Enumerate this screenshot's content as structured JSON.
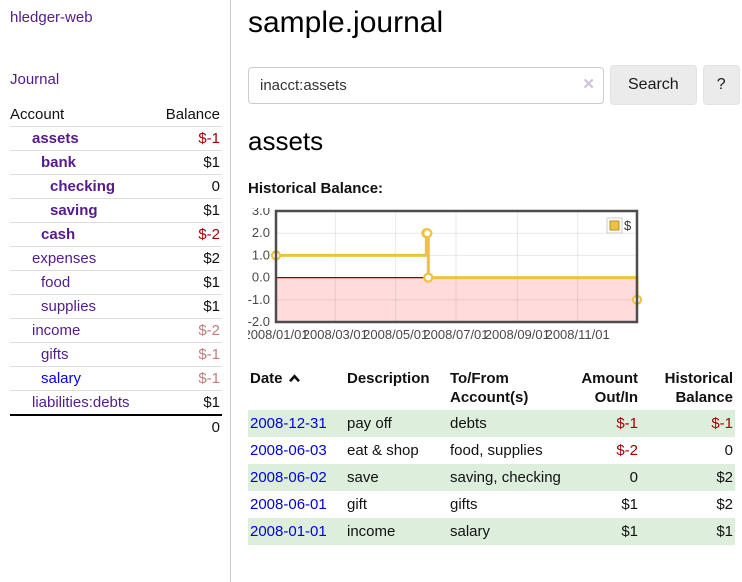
{
  "colors": {
    "link_visited_purple": "#551A8B",
    "link_unvisited_blue": "#0000EE",
    "negative_strong_red": "#a40000",
    "negative_muted_rose": "#c47d7d",
    "row_stripe_green": "#ddeedd",
    "series_gold": "#edc240",
    "negative_region_pink": "#ffdbdb",
    "zero_line_dark_red": "#8b0000",
    "plot_border_gray": "#4d4d4d"
  },
  "icons": {
    "sort_ascending": "chevron-up-icon",
    "clear_search_glyph": "✕",
    "legend_swatch": "gold-square-icon"
  },
  "sidebar": {
    "app_title": "hledger-web",
    "journal_link": "Journal",
    "accounts": {
      "account_header": "Account",
      "balance_header": "Balance",
      "rows": [
        {
          "name": "assets",
          "balance": "$-1",
          "depth": 1,
          "bold": true,
          "link_tone": "visited",
          "balance_tone": "neg-strong"
        },
        {
          "name": "bank",
          "balance": "$1",
          "depth": 2,
          "bold": true,
          "link_tone": "visited",
          "balance_tone": "plain"
        },
        {
          "name": "checking",
          "balance": "0",
          "depth": 3,
          "bold": true,
          "link_tone": "visited",
          "balance_tone": "plain"
        },
        {
          "name": "saving",
          "balance": "$1",
          "depth": 3,
          "bold": true,
          "link_tone": "visited",
          "balance_tone": "plain"
        },
        {
          "name": "cash",
          "balance": "$-2",
          "depth": 2,
          "bold": true,
          "link_tone": "visited",
          "balance_tone": "neg-strong"
        },
        {
          "name": "expenses",
          "balance": "$2",
          "depth": 1,
          "bold": false,
          "link_tone": "visited",
          "balance_tone": "plain"
        },
        {
          "name": "food",
          "balance": "$1",
          "depth": 2,
          "bold": false,
          "link_tone": "visited",
          "balance_tone": "plain"
        },
        {
          "name": "supplies",
          "balance": "$1",
          "depth": 2,
          "bold": false,
          "link_tone": "visited",
          "balance_tone": "plain"
        },
        {
          "name": "income",
          "balance": "$-2",
          "depth": 1,
          "bold": false,
          "link_tone": "visited",
          "balance_tone": "neg-muted"
        },
        {
          "name": "gifts",
          "balance": "$-1",
          "depth": 2,
          "bold": false,
          "link_tone": "visited",
          "balance_tone": "neg-muted"
        },
        {
          "name": "salary",
          "balance": "$-1",
          "depth": 2,
          "bold": false,
          "link_tone": "unvisited",
          "balance_tone": "neg-muted"
        },
        {
          "name": "liabilities:debts",
          "balance": "$1",
          "depth": 1,
          "bold": false,
          "link_tone": "visited",
          "balance_tone": "plain"
        }
      ],
      "total": "0"
    }
  },
  "main": {
    "title": "sample.journal",
    "search": {
      "value": "inacct:assets",
      "search_button": "Search",
      "help_button": "?"
    },
    "account_heading": "assets",
    "chart_label": "Historical Balance:"
  },
  "chart_data": {
    "type": "line",
    "style": "step-with-markers",
    "title": "Historical Balance of assets",
    "series": [
      {
        "name": "$",
        "color": "#edc240",
        "points": [
          [
            "2008-01-01",
            1
          ],
          [
            "2008-06-01",
            2
          ],
          [
            "2008-06-02",
            2
          ],
          [
            "2008-06-03",
            0
          ],
          [
            "2008-12-31",
            -1
          ]
        ]
      }
    ],
    "x_range": [
      "2008-01-01",
      "2008-12-31"
    ],
    "ylim": [
      -2,
      3
    ],
    "y_ticks": [
      {
        "value": 3,
        "label": "3.0"
      },
      {
        "value": 2,
        "label": "2.0"
      },
      {
        "value": 1,
        "label": "1.0"
      },
      {
        "value": 0,
        "label": "0.0"
      },
      {
        "value": -1,
        "label": "-1.0"
      },
      {
        "value": -2,
        "label": "-2.0"
      }
    ],
    "x_ticks": [
      {
        "date": "2008-01-01",
        "label": "2008/01/01"
      },
      {
        "date": "2008-03-01",
        "label": "2008/03/01"
      },
      {
        "date": "2008-05-01",
        "label": "2008/05/01"
      },
      {
        "date": "2008-07-01",
        "label": "2008/07/01"
      },
      {
        "date": "2008-09-01",
        "label": "2008/09/01"
      },
      {
        "date": "2008-11-01",
        "label": "2008/11/01"
      }
    ],
    "legend": {
      "label": "$",
      "position": "top-right"
    },
    "grid": true,
    "negative_region_shaded": true
  },
  "register": {
    "headers": {
      "date": "Date",
      "description": "Description",
      "account": "To/From Account(s)",
      "amount": "Amount Out/In",
      "balance": "Historical Balance"
    },
    "sort": {
      "column": "Date",
      "direction": "ascending"
    },
    "rows": [
      {
        "date": "2008-12-31",
        "description": "pay off",
        "accounts": "debts",
        "amount": "$-1",
        "balance": "$-1"
      },
      {
        "date": "2008-06-03",
        "description": "eat & shop",
        "accounts": "food, supplies",
        "amount": "$-2",
        "balance": "0"
      },
      {
        "date": "2008-06-02",
        "description": "save",
        "accounts": "saving, checking",
        "amount": "0",
        "balance": "$2"
      },
      {
        "date": "2008-06-01",
        "description": "gift",
        "accounts": "gifts",
        "amount": "$1",
        "balance": "$2"
      },
      {
        "date": "2008-01-01",
        "description": "income",
        "accounts": "salary",
        "amount": "$1",
        "balance": "$1"
      }
    ]
  }
}
